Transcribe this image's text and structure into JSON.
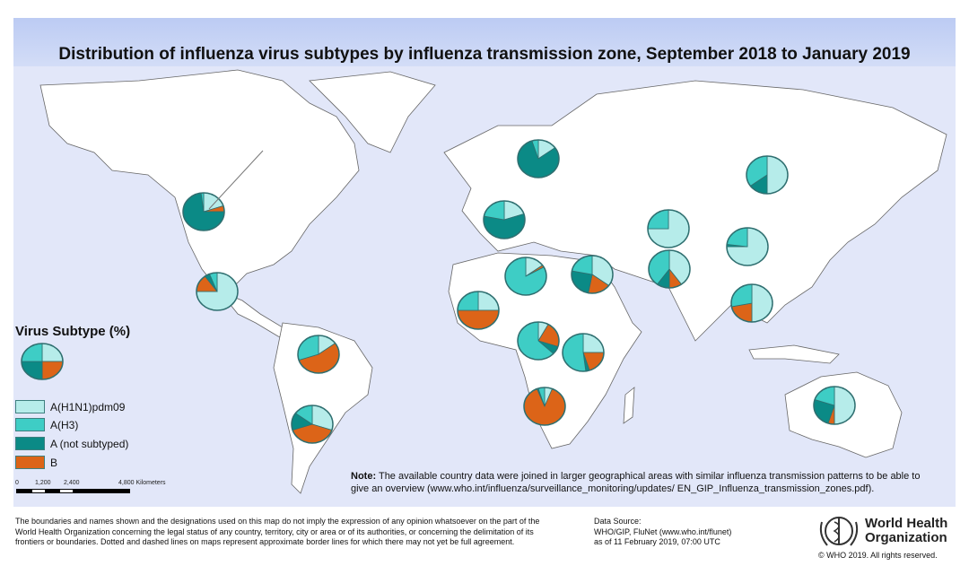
{
  "title": "Distribution of influenza virus subtypes by influenza transmission zone, September 2018 to January 2019",
  "legend": {
    "title": "Virus Subtype (%)",
    "items": [
      {
        "label": "A(H1N1)pdm09",
        "color": "#b6ecea"
      },
      {
        "label": "A(H3)",
        "color": "#3ecdc5"
      },
      {
        "label": "A (not subtyped)",
        "color": "#0b8a86"
      },
      {
        "label": "B",
        "color": "#dc6418"
      }
    ]
  },
  "scale_bar": {
    "ticks": [
      "0",
      "1,200",
      "2,400",
      "4,800 Kilometers"
    ]
  },
  "note": {
    "label": "Note:",
    "text": "The available country data were joined in larger geographical areas with similar influenza transmission patterns to be able to give an overview (www.who.int/influenza/surveillance_monitoring/updates/ EN_GIP_Influenza_transmission_zones.pdf)."
  },
  "disclaimer": "The boundaries and names shown and the designations used on this map do not imply the expression of any opinion whatsoever on the part of the World Health Organization concerning the legal status of any country, territory, city or area or of its authorities, or concerning the delimitation of its frontiers or boundaries. Dotted and dashed lines on maps represent approximate border lines for which there may not yet be full agreement.",
  "source": {
    "line1": "Data Source:",
    "line2": "WHO/GIP, FluNet (www.who.int/flunet)",
    "line3": "as of 11 February 2019, 07:00 UTC"
  },
  "org": {
    "line1": "World Health",
    "line2": "Organization",
    "copyright": "© WHO 2019. All rights reserved."
  },
  "chart_data": {
    "type": "pie",
    "series_order": [
      "A(H1N1)pdm09",
      "B",
      "A (not subtyped)",
      "A(H3)"
    ],
    "legend_pie": [
      25,
      25,
      25,
      25
    ],
    "pies": [
      [
        20,
        5,
        73,
        2
      ],
      [
        75,
        15,
        4,
        6
      ],
      [
        15,
        0,
        80,
        5
      ],
      [
        20,
        0,
        58,
        22
      ],
      [
        15,
        2,
        0,
        83
      ],
      [
        35,
        18,
        25,
        22
      ],
      [
        25,
        50,
        0,
        25
      ],
      [
        8,
        22,
        7,
        63
      ],
      [
        25,
        20,
        3,
        52
      ],
      [
        6,
        88,
        1,
        5
      ],
      [
        15,
        55,
        0,
        30
      ],
      [
        30,
        40,
        15,
        15
      ],
      [
        50,
        0,
        15,
        35
      ],
      [
        75,
        0,
        0,
        25
      ],
      [
        75,
        0,
        2,
        23
      ],
      [
        40,
        10,
        10,
        40
      ],
      [
        50,
        22,
        0,
        28
      ],
      [
        50,
        5,
        25,
        20
      ]
    ]
  }
}
